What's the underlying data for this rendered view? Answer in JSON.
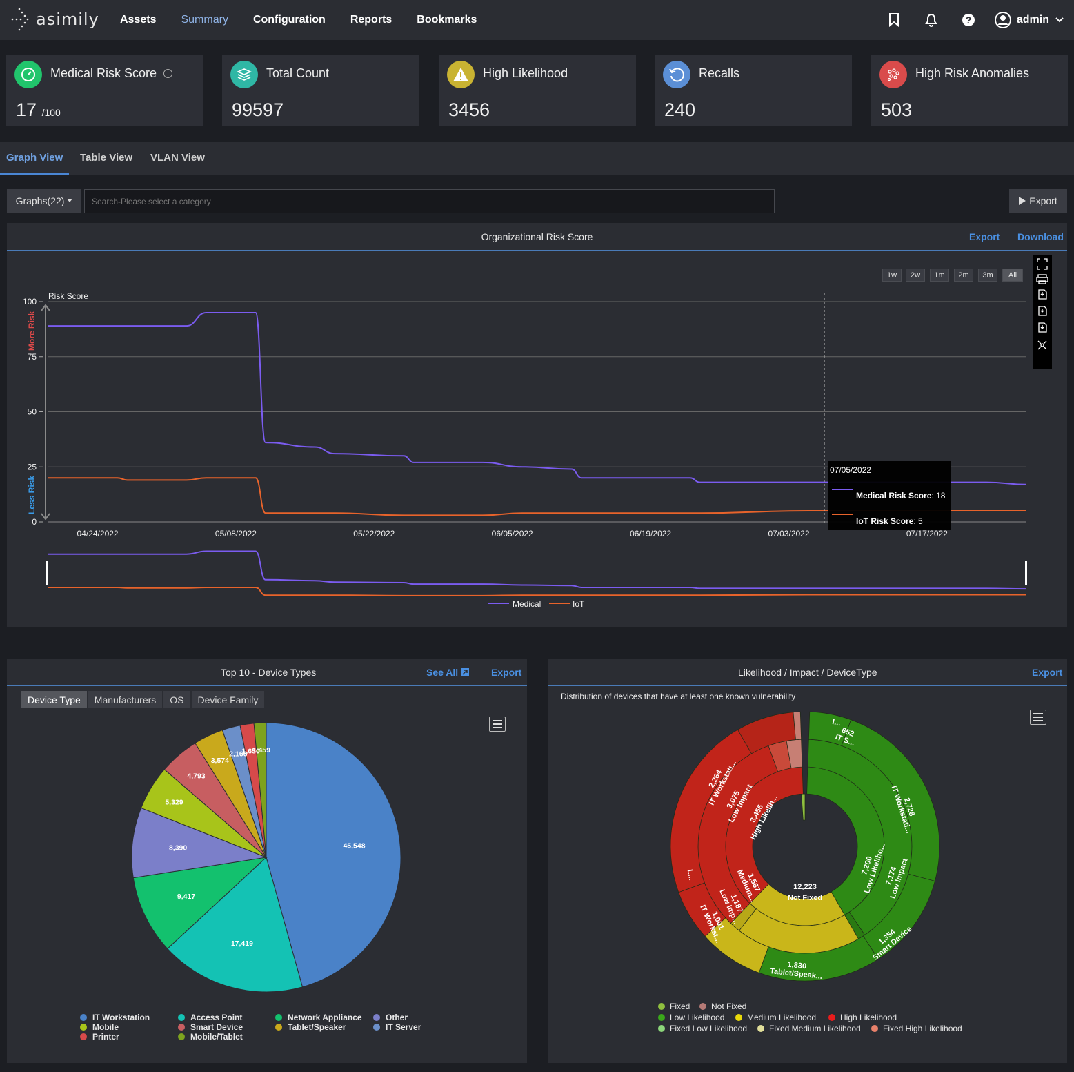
{
  "brand": {
    "logo_text": "asimily"
  },
  "nav": {
    "items": [
      {
        "label": "Assets"
      },
      {
        "label": "Summary"
      },
      {
        "label": "Configuration"
      },
      {
        "label": "Reports"
      },
      {
        "label": "Bookmarks"
      }
    ],
    "active": "Summary",
    "user": "admin",
    "icons": [
      "bookmark-icon",
      "bell-icon",
      "help-icon",
      "user-avatar-icon",
      "chevron-down-icon"
    ]
  },
  "kpis": [
    {
      "title": "Medical Risk Score",
      "value": "17",
      "suffix": "/100",
      "icon": "gauge-icon",
      "color": "#21c56c"
    },
    {
      "title": "Total Count",
      "value": "99597",
      "suffix": "",
      "icon": "layers-icon",
      "color": "#2fb7a5"
    },
    {
      "title": "High Likelihood",
      "value": "3456",
      "suffix": "",
      "icon": "warning-icon",
      "color": "#c9b332"
    },
    {
      "title": "Recalls",
      "value": "240",
      "suffix": "",
      "icon": "refresh-icon",
      "color": "#5b8fd6"
    },
    {
      "title": "High Risk Anomalies",
      "value": "503",
      "suffix": "",
      "icon": "anomaly-icon",
      "color": "#d94b4b"
    }
  ],
  "view_tabs": [
    {
      "label": "Graph View"
    },
    {
      "label": "Table View"
    },
    {
      "label": "VLAN View"
    }
  ],
  "toolbar": {
    "graphs_label": "Graphs(22)",
    "search_placeholder": "Search-Please select a category",
    "export_label": "Export"
  },
  "risk_panel": {
    "title": "Organizational Risk Score",
    "export": "Export",
    "download": "Download",
    "ranges": [
      "1w",
      "2w",
      "1m",
      "2m",
      "3m",
      "All"
    ],
    "active_range": "All",
    "y_title": "Risk Score",
    "more_risk": "More Risk",
    "less_risk": "Less Risk",
    "tooltip": {
      "date": "07/05/2022",
      "medical_label": "Medical Risk Score",
      "medical_value": "18",
      "iot_label": "IoT Risk Score",
      "iot_value": "5"
    },
    "legend": {
      "medical": "Medical",
      "iot": "IoT"
    }
  },
  "device_panel": {
    "title": "Top 10 - Device Types",
    "see_all": "See All",
    "export": "Export",
    "subtabs": [
      "Device Type",
      "Manufacturers",
      "OS",
      "Device Family"
    ],
    "active_subtab": "Device Type"
  },
  "sunburst_panel": {
    "title": "Likelihood / Impact / DeviceType",
    "export": "Export",
    "subtitle": "Distribution of devices that have at least one known vulnerability",
    "center_value": "12,223",
    "center_label": "Not Fixed",
    "labels": {
      "red_outer_value": "2,264",
      "red_outer_name": "IT Workstati...",
      "red_mid_value": "3,075",
      "red_mid_name": "Low Impact",
      "red_inner_value": "3,456",
      "red_inner_name": "High Likelih...",
      "yel_inner_value": "1,567",
      "yel_inner_name": "Medium...",
      "yel_mid_value": "1,187",
      "yel_mid_name": "Low Imp...",
      "yel_outer_value": "1,001",
      "yel_outer_name": "IT Workst...",
      "grn_inner_value": "7,200",
      "grn_inner_name": "Low Likeliho...",
      "grn_mid_value": "7,174",
      "grn_mid_name": "Low Impact",
      "grn_outer1_value": "2,728",
      "grn_outer1_name": "IT Workstati...",
      "grn_outer2_value": "1,354",
      "grn_outer2_name": "Smart Device",
      "grn_outer3_value": "1,830",
      "grn_outer3_name": "Tablet/Speak...",
      "grn_top_value": "652",
      "grn_top_name": "IT S...",
      "small_l": "L...",
      "small_i": "I..."
    },
    "legend": [
      {
        "label": "Fixed",
        "color": "#8fbf3f"
      },
      {
        "label": "Not Fixed",
        "color": "#b57a76"
      },
      {
        "label": "Low Likelihood",
        "color": "#3aa81a"
      },
      {
        "label": "Medium Likelihood",
        "color": "#e8d90a"
      },
      {
        "label": "High Likelihood",
        "color": "#e81c1c"
      },
      {
        "label": "Fixed Low Likelihood",
        "color": "#8cd67a"
      },
      {
        "label": "Fixed Medium Likelihood",
        "color": "#e0de9a"
      },
      {
        "label": "Fixed High Likelihood",
        "color": "#e8816b"
      }
    ]
  },
  "chart_data": [
    {
      "type": "line",
      "title": "Organizational Risk Score",
      "ylabel": "Risk Score",
      "ylim": [
        0,
        100
      ],
      "yticks": [
        0,
        25,
        50,
        75,
        100
      ],
      "xticks": [
        "04/24/2022",
        "05/08/2022",
        "05/22/2022",
        "06/05/2022",
        "06/19/2022",
        "07/03/2022",
        "07/17/2022"
      ],
      "x": [
        "04/19/2022",
        "04/26/2022",
        "04/27/2022",
        "05/03/2022",
        "05/05/2022",
        "05/10/2022",
        "05/11/2022",
        "05/16/2022",
        "05/18/2022",
        "05/25/2022",
        "05/26/2022",
        "06/02/2022",
        "06/06/2022",
        "06/11/2022",
        "06/12/2022",
        "06/23/2022",
        "06/24/2022",
        "07/05/2022",
        "07/23/2022",
        "07/27/2022"
      ],
      "series": [
        {
          "name": "Medical",
          "color": "#7b5cf0",
          "values": [
            89,
            89,
            89,
            89,
            95,
            95,
            36,
            34,
            31,
            30,
            27,
            27,
            25,
            24,
            20,
            20,
            18,
            18,
            18,
            17
          ]
        },
        {
          "name": "IoT",
          "color": "#e8632b",
          "values": [
            20,
            20,
            19,
            19,
            20,
            20,
            4,
            4,
            4,
            3,
            3,
            3,
            4,
            4,
            4,
            4,
            4,
            5,
            5,
            5
          ]
        }
      ],
      "grid": true,
      "legend": "bottom"
    },
    {
      "type": "pie",
      "title": "Top 10 - Device Types",
      "categories": [
        "IT Workstation",
        "Access Point",
        "Network Appliance",
        "Other",
        "Mobile",
        "Smart Device",
        "Tablet/Speaker",
        "IT Server",
        "Printer",
        "Mobile/Tablet"
      ],
      "values": [
        45548,
        17419,
        9417,
        8390,
        5329,
        4793,
        3574,
        2166,
        1650,
        1459
      ],
      "value_labels": [
        "45,548",
        "17,419",
        "9,417",
        "8,390",
        "5,329",
        "4,793",
        "3,574",
        "2,166",
        "1,650",
        "1,459"
      ],
      "colors": [
        "#4a82c8",
        "#14c2b4",
        "#13c16e",
        "#7b7fc9",
        "#a8c41a",
        "#c75e61",
        "#c9a91c",
        "#6b8fc9",
        "#d64a4a",
        "#7da21e"
      ],
      "legend": "bottom"
    },
    {
      "type": "pie",
      "title": "Likelihood / Impact / DeviceType",
      "categories": [
        "Not Fixed"
      ],
      "values": [
        12223
      ],
      "legend": "bottom"
    }
  ]
}
